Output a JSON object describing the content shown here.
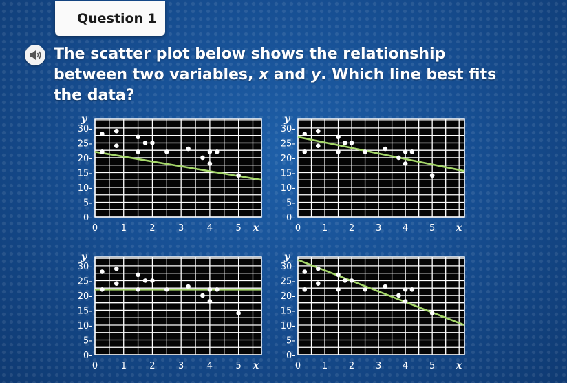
{
  "header": {
    "tab_label": "Question 1"
  },
  "question": {
    "audio_icon": "speaker-icon",
    "text_before": "The scatter plot below shows the relationship between two variables, ",
    "var_x": "x",
    "text_and": " and ",
    "var_y": "y",
    "text_after": ". Which line best fits the data?"
  },
  "colors": {
    "background": "#174f93",
    "grid": "#ffffff",
    "line": "#a6d86a",
    "point": "#ffffff"
  },
  "chart_data": [
    {
      "type": "scatter",
      "option": 1,
      "xlabel": "x",
      "ylabel": "y",
      "xlim": [
        0,
        5.8
      ],
      "ylim": [
        0,
        33
      ],
      "xticks": [
        "0",
        "1",
        "2",
        "3",
        "4",
        "5"
      ],
      "yticks": [
        "0",
        "5",
        "10",
        "15",
        "20",
        "25",
        "30"
      ],
      "points": [
        [
          0.25,
          22
        ],
        [
          0.25,
          28
        ],
        [
          0.75,
          24
        ],
        [
          0.75,
          29
        ],
        [
          1.5,
          22
        ],
        [
          1.5,
          27
        ],
        [
          1.75,
          25
        ],
        [
          2,
          25
        ],
        [
          2.5,
          22
        ],
        [
          3.25,
          23
        ],
        [
          3.75,
          20
        ],
        [
          4,
          18
        ],
        [
          4,
          22
        ],
        [
          4.25,
          22
        ],
        [
          5,
          14
        ]
      ],
      "fit_line": [
        [
          0,
          22
        ],
        [
          5.8,
          12.5
        ]
      ]
    },
    {
      "type": "scatter",
      "option": 2,
      "xlabel": "x",
      "ylabel": "y",
      "xlim": [
        0,
        6.2
      ],
      "ylim": [
        0,
        33
      ],
      "xticks": [
        "0",
        "1",
        "2",
        "3",
        "4",
        "5"
      ],
      "yticks": [
        "0",
        "5",
        "10",
        "15",
        "20",
        "25",
        "30"
      ],
      "points": [
        [
          0.25,
          22
        ],
        [
          0.25,
          28
        ],
        [
          0.75,
          24
        ],
        [
          0.75,
          29
        ],
        [
          1.5,
          22
        ],
        [
          1.5,
          27
        ],
        [
          1.75,
          25
        ],
        [
          2,
          25
        ],
        [
          2.5,
          22
        ],
        [
          3.25,
          23
        ],
        [
          3.75,
          20
        ],
        [
          4,
          18
        ],
        [
          4,
          22
        ],
        [
          4.25,
          22
        ],
        [
          5,
          14
        ]
      ],
      "fit_line": [
        [
          0,
          27
        ],
        [
          6.2,
          15.5
        ]
      ]
    },
    {
      "type": "scatter",
      "option": 3,
      "xlabel": "x",
      "ylabel": "y",
      "xlim": [
        0,
        5.8
      ],
      "ylim": [
        0,
        33
      ],
      "xticks": [
        "0",
        "1",
        "2",
        "3",
        "4",
        "5"
      ],
      "yticks": [
        "0",
        "5",
        "10",
        "15",
        "20",
        "25",
        "30"
      ],
      "points": [
        [
          0.25,
          22
        ],
        [
          0.25,
          28
        ],
        [
          0.75,
          24
        ],
        [
          0.75,
          29
        ],
        [
          1.5,
          22
        ],
        [
          1.5,
          27
        ],
        [
          1.75,
          25
        ],
        [
          2,
          25
        ],
        [
          2.5,
          22
        ],
        [
          3.25,
          23
        ],
        [
          3.75,
          20
        ],
        [
          4,
          18
        ],
        [
          4,
          22
        ],
        [
          4.25,
          22
        ],
        [
          5,
          14
        ]
      ],
      "fit_line": [
        [
          0,
          22
        ],
        [
          5.8,
          22
        ]
      ]
    },
    {
      "type": "scatter",
      "option": 4,
      "xlabel": "x",
      "ylabel": "y",
      "xlim": [
        0,
        6.2
      ],
      "ylim": [
        0,
        33
      ],
      "xticks": [
        "0",
        "1",
        "2",
        "3",
        "4",
        "5"
      ],
      "yticks": [
        "0",
        "5",
        "10",
        "15",
        "20",
        "25",
        "30"
      ],
      "points": [
        [
          0.25,
          22
        ],
        [
          0.25,
          28
        ],
        [
          0.75,
          24
        ],
        [
          0.75,
          29
        ],
        [
          1.5,
          22
        ],
        [
          1.5,
          27
        ],
        [
          1.75,
          25
        ],
        [
          2,
          25
        ],
        [
          2.5,
          22
        ],
        [
          3.25,
          23
        ],
        [
          3.75,
          20
        ],
        [
          4,
          18
        ],
        [
          4,
          22
        ],
        [
          4.25,
          22
        ],
        [
          5,
          14
        ]
      ],
      "fit_line": [
        [
          0,
          32
        ],
        [
          6.2,
          10
        ]
      ]
    }
  ]
}
